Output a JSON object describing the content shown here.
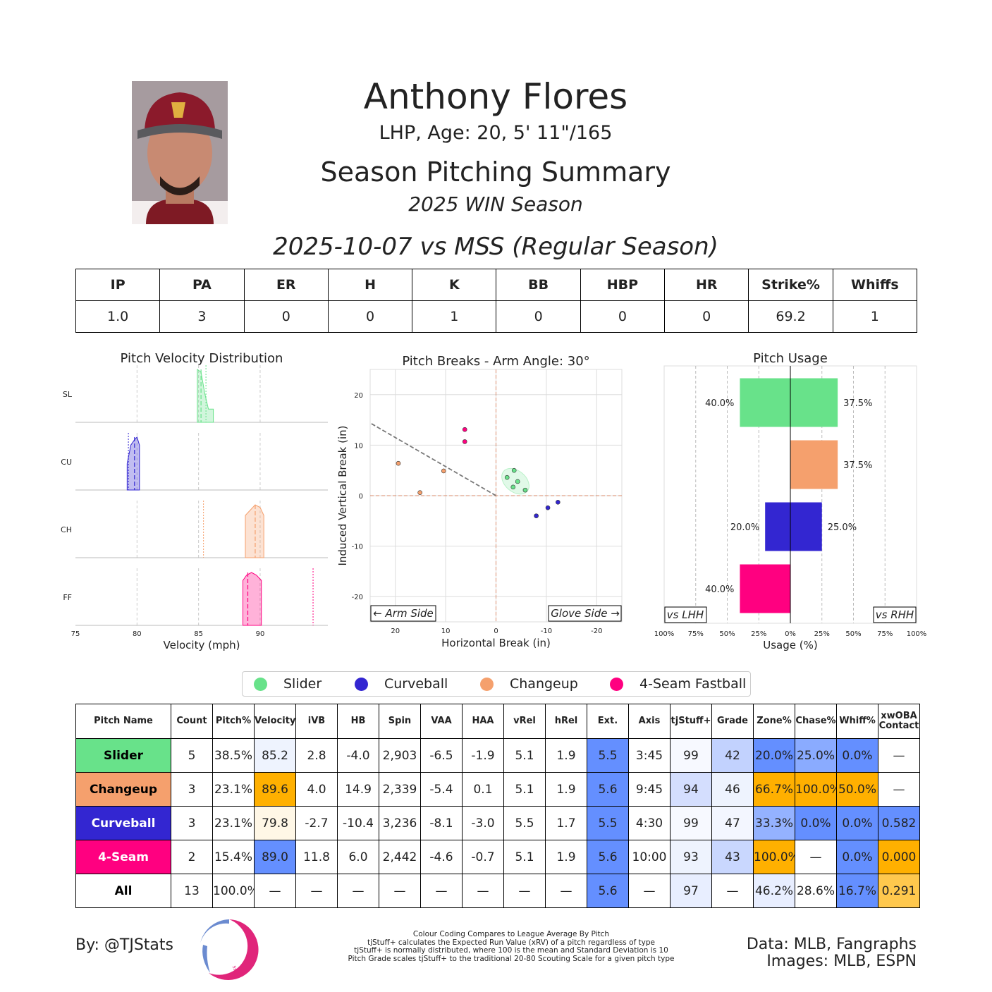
{
  "header": {
    "player_name": "Anthony Flores",
    "bio": "LHP, Age: 20, 5' 11\"/165",
    "summary_title": "Season Pitching Summary",
    "season_label": "2025 WIN Season",
    "game_label": "2025-10-07 vs MSS (Regular Season)"
  },
  "game_stats": {
    "headers": [
      "IP",
      "PA",
      "ER",
      "H",
      "K",
      "BB",
      "HBP",
      "HR",
      "Strike%",
      "Whiffs"
    ],
    "values": [
      "1.0",
      "3",
      "0",
      "0",
      "1",
      "0",
      "0",
      "0",
      "69.2",
      "1"
    ]
  },
  "pitch_colors": {
    "Slider": "#68e28a",
    "Curveball": "#3326d1",
    "Changeup": "#f5a06d",
    "4-Seam Fastball": "#ff0080"
  },
  "legend": [
    "Slider",
    "Curveball",
    "Changeup",
    "4-Seam Fastball"
  ],
  "chart_data": [
    {
      "type": "area",
      "title": "Pitch Velocity Distribution",
      "xlabel": "Velocity (mph)",
      "xlim": [
        75,
        95.5
      ],
      "xticks": [
        75,
        80,
        85,
        90
      ],
      "rows": [
        {
          "label": "SL",
          "pitch": "Slider",
          "range": [
            84.9,
            86.2
          ],
          "mean": 85.2,
          "league_avg": 85.6,
          "density": [
            [
              84.9,
              1.0
            ],
            [
              85.2,
              0.95
            ],
            [
              85.5,
              0.55
            ],
            [
              85.8,
              0.25
            ],
            [
              86.2,
              0.25
            ]
          ]
        },
        {
          "label": "CU",
          "pitch": "Curveball",
          "range": [
            79.2,
            80.2
          ],
          "mean": 79.8,
          "league_avg": 79.3,
          "density": [
            [
              79.2,
              0.5
            ],
            [
              79.5,
              0.85
            ],
            [
              79.8,
              0.95
            ],
            [
              80.0,
              1.0
            ],
            [
              80.2,
              0.85
            ]
          ]
        },
        {
          "label": "CH",
          "pitch": "Changeup",
          "range": [
            88.8,
            90.3
          ],
          "mean": 89.6,
          "league_avg": 85.4,
          "density": [
            [
              88.8,
              0.8
            ],
            [
              89.2,
              0.9
            ],
            [
              89.6,
              1.0
            ],
            [
              90.0,
              0.95
            ],
            [
              90.3,
              0.8
            ]
          ]
        },
        {
          "label": "FF",
          "pitch": "4-Seam Fastball",
          "range": [
            88.6,
            90.1
          ],
          "mean": 89.0,
          "league_avg": 94.3,
          "density": [
            [
              88.6,
              0.85
            ],
            [
              88.9,
              0.95
            ],
            [
              89.3,
              1.0
            ],
            [
              89.7,
              0.95
            ],
            [
              90.1,
              0.85
            ]
          ]
        }
      ]
    },
    {
      "type": "scatter",
      "title": "Pitch Breaks - Arm Angle: 30°",
      "xlabel": "Horizontal Break (in)",
      "ylabel": "Induced Vertical Break (in)",
      "xlim": [
        25,
        -25
      ],
      "ylim": [
        -25,
        25
      ],
      "xticks": [
        20,
        10,
        0,
        -10,
        -20
      ],
      "yticks": [
        20,
        10,
        0,
        -10,
        -20
      ],
      "arm_side_label": "← Arm Side",
      "glove_side_label": "Glove Side →",
      "arm_angle_line": {
        "from": [
          0,
          0
        ],
        "to": [
          25,
          14.4
        ]
      },
      "points": [
        {
          "pitch": "Slider",
          "x": -2.2,
          "y": 3.6
        },
        {
          "pitch": "Slider",
          "x": -3.6,
          "y": 5.0
        },
        {
          "pitch": "Slider",
          "x": -4.3,
          "y": 2.8
        },
        {
          "pitch": "Slider",
          "x": -3.4,
          "y": 1.7
        },
        {
          "pitch": "Slider",
          "x": -5.8,
          "y": 1.1
        },
        {
          "pitch": "Changeup",
          "x": 19.4,
          "y": 6.4
        },
        {
          "pitch": "Changeup",
          "x": 10.4,
          "y": 4.9
        },
        {
          "pitch": "Changeup",
          "x": 15.1,
          "y": 0.6
        },
        {
          "pitch": "Curveball",
          "x": -8.0,
          "y": -4.0
        },
        {
          "pitch": "Curveball",
          "x": -10.3,
          "y": -2.4
        },
        {
          "pitch": "Curveball",
          "x": -12.3,
          "y": -1.3
        },
        {
          "pitch": "4-Seam Fastball",
          "x": 6.2,
          "y": 13.1
        },
        {
          "pitch": "4-Seam Fastball",
          "x": 6.2,
          "y": 10.7
        }
      ]
    },
    {
      "type": "bar",
      "title": "Pitch Usage",
      "xlabel": "Usage (%)",
      "xlim": [
        -100,
        100
      ],
      "xtick_labels": [
        "100%",
        "75%",
        "50%",
        "25%",
        "0%",
        "25%",
        "50%",
        "75%",
        "100%"
      ],
      "vs_lhh_label": "vs LHH",
      "vs_rhh_label": "vs RHH",
      "categories": [
        "Slider",
        "Changeup",
        "Curveball",
        "4-Seam Fastball"
      ],
      "series": [
        {
          "name": "vs LHH",
          "values": [
            40.0,
            0,
            20.0,
            40.0
          ],
          "labels": [
            "40.0%",
            "",
            "20.0%",
            "40.0%"
          ]
        },
        {
          "name": "vs RHH",
          "values": [
            37.5,
            37.5,
            25.0,
            0
          ],
          "labels": [
            "37.5%",
            "37.5%",
            "25.0%",
            ""
          ]
        }
      ]
    },
    {
      "type": "table",
      "columns": [
        "Pitch Name",
        "Count",
        "Pitch%",
        "Velocity",
        "iVB",
        "HB",
        "Spin",
        "VAA",
        "HAA",
        "vRel",
        "hRel",
        "Ext.",
        "Axis",
        "tjStuff+",
        "Grade",
        "Zone%",
        "Chase%",
        "Whiff%",
        "xwOBA Contact"
      ],
      "rows": [
        {
          "name": "Slider",
          "bg": "#68e28a",
          "fg": "#000000",
          "cells": [
            "5",
            "38.5%",
            "85.2",
            "2.8",
            "-4.0",
            "2,903",
            "-6.5",
            "-1.9",
            "5.1",
            "1.9",
            "5.5",
            "3:45",
            "99",
            "42",
            "20.0%",
            "25.0%",
            "0.0%",
            "—"
          ],
          "shade": [
            "",
            "",
            "#eef3fe",
            "",
            "",
            "",
            "",
            "",
            "",
            "",
            "#648fff",
            "",
            "#f7f9ff",
            "#c2d2fe",
            "#648fff",
            "#8aabff",
            "#648fff",
            ""
          ]
        },
        {
          "name": "Changeup",
          "bg": "#f5a06d",
          "fg": "#000000",
          "cells": [
            "3",
            "23.1%",
            "89.6",
            "4.0",
            "14.9",
            "2,339",
            "-5.4",
            "0.1",
            "5.1",
            "1.9",
            "5.6",
            "9:45",
            "94",
            "46",
            "66.7%",
            "100.0%",
            "50.0%",
            "—"
          ],
          "shade": [
            "",
            "",
            "#ffb000",
            "",
            "",
            "",
            "",
            "",
            "",
            "",
            "#648fff",
            "",
            "#d4defe",
            "#eef3fe",
            "#ffb000",
            "#ffb000",
            "#ffb000",
            ""
          ]
        },
        {
          "name": "Curveball",
          "bg": "#3326d1",
          "fg": "#ffffff",
          "cells": [
            "3",
            "23.1%",
            "79.8",
            "-2.7",
            "-10.4",
            "3,236",
            "-8.1",
            "-3.0",
            "5.5",
            "1.7",
            "5.5",
            "4:30",
            "99",
            "47",
            "33.3%",
            "0.0%",
            "0.0%",
            "0.582"
          ],
          "shade": [
            "",
            "",
            "#fff7e6",
            "",
            "",
            "",
            "",
            "",
            "",
            "",
            "#648fff",
            "",
            "#f7f9ff",
            "#f3f6ff",
            "#94b2ff",
            "#648fff",
            "#648fff",
            "#648fff"
          ]
        },
        {
          "name": "4-Seam",
          "bg": "#ff0080",
          "fg": "#ffffff",
          "cells": [
            "2",
            "15.4%",
            "89.0",
            "11.8",
            "6.0",
            "2,442",
            "-4.6",
            "-0.7",
            "5.1",
            "1.9",
            "5.6",
            "10:00",
            "93",
            "43",
            "100.0%",
            "—",
            "0.0%",
            "0.000"
          ],
          "shade": [
            "",
            "",
            "#648fff",
            "",
            "",
            "",
            "",
            "",
            "",
            "",
            "#648fff",
            "",
            "#eef3fe",
            "#c9d7fe",
            "#ffb000",
            "",
            "#648fff",
            "#ffb000"
          ]
        },
        {
          "name": "All",
          "bg": "#ffffff",
          "fg": "#000000",
          "cells": [
            "13",
            "100.0%",
            "—",
            "—",
            "—",
            "—",
            "—",
            "—",
            "—",
            "—",
            "5.6",
            "—",
            "97",
            "—",
            "46.2%",
            "28.6%",
            "16.7%",
            "0.291"
          ],
          "shade": [
            "",
            "",
            "",
            "",
            "",
            "",
            "",
            "",
            "",
            "",
            "#648fff",
            "",
            "#e8eeff",
            "",
            "#e8eeff",
            "",
            "#648fff",
            "#ffc84d"
          ]
        }
      ]
    }
  ],
  "footer": {
    "byline": "By: @TJStats",
    "logo_text": "STATS",
    "notes": [
      "Colour Coding Compares to League Average By Pitch",
      "tjStuff+ calculates the Expected Run Value (xRV) of a pitch regardless of type",
      "tjStuff+ is normally distributed, where 100 is the mean and Standard Deviation is 10",
      "Pitch Grade scales tjStuff+ to the traditional 20-80 Scouting Scale for a given pitch type"
    ],
    "data_credit": "Data: MLB, Fangraphs",
    "image_credit": "Images: MLB, ESPN"
  }
}
